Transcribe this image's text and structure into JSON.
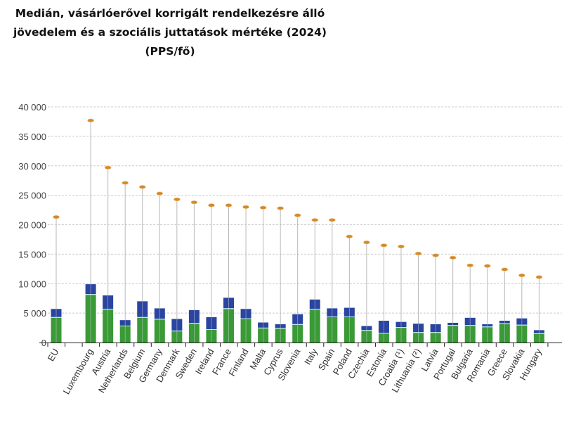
{
  "chart_data": {
    "type": "bar",
    "stacked": true,
    "title": [
      "Medián, vásárlóerővel korrigált rendelkezésre álló",
      "jövedelem és a szociális juttatások mértéke (2024)",
      "(PPS/fő)"
    ],
    "xlabel": "",
    "ylabel": "",
    "ylim": [
      0,
      40000
    ],
    "yticks": [
      "0",
      "5 000",
      "10 000",
      "15 000",
      "20 000",
      "25 000",
      "30 000",
      "35 000",
      "40 000"
    ],
    "grid": true,
    "legend": "none",
    "categories": [
      "EU",
      "",
      "Luxembourg",
      "Austria",
      "Netherlands",
      "Belgium",
      "Germany",
      "Denmark",
      "Sweden",
      "Ireland",
      "France",
      "Finland",
      "Malta",
      "Cyprus",
      "Slovenia",
      "Italy",
      "Spain",
      "Poland",
      "Czechia",
      "Estonia",
      "Croatia (¹)",
      "Lithuania (²)",
      "Latvia",
      "Portugal",
      "Bulgaria",
      "Romania",
      "Greece",
      "Slovakia",
      "Hungary"
    ],
    "series": [
      {
        "color": "#3a9a36",
        "kind": "bar-bottom",
        "values": [
          4200,
          null,
          8100,
          5600,
          2750,
          4200,
          3900,
          1900,
          3200,
          2150,
          5700,
          4000,
          2400,
          2350,
          3000,
          5600,
          4300,
          4300,
          2000,
          1500,
          2500,
          1650,
          1650,
          2850,
          2850,
          2600,
          3150,
          2900,
          1450
        ]
      },
      {
        "color": "#2a44a0",
        "kind": "bar-top",
        "values": [
          1500,
          null,
          1800,
          2400,
          1050,
          2800,
          1900,
          2100,
          2300,
          2150,
          1900,
          1700,
          1000,
          750,
          1800,
          1700,
          1500,
          1600,
          800,
          2200,
          1000,
          1550,
          1450,
          500,
          1350,
          500,
          550,
          1200,
          650
        ]
      },
      {
        "color": "#d4892a",
        "kind": "marker",
        "values": [
          21300,
          null,
          37700,
          29700,
          27100,
          26400,
          25300,
          24300,
          23800,
          23300,
          23300,
          23000,
          22900,
          22800,
          21600,
          20800,
          20800,
          18000,
          17000,
          16500,
          16300,
          15100,
          14800,
          14400,
          13100,
          13000,
          12400,
          11400,
          11100
        ]
      }
    ]
  },
  "colors": {
    "grid": "#cccccc",
    "stem": "#b8b8b8",
    "axis": "#222222"
  }
}
